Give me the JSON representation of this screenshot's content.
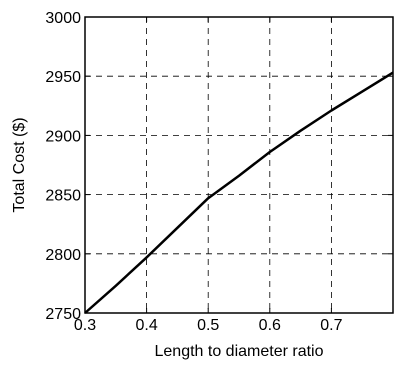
{
  "chart_data": {
    "type": "line",
    "title": "",
    "xlabel": "Length to diameter ratio",
    "ylabel": "Total Cost ($)",
    "xlim": [
      0.3,
      0.8
    ],
    "ylim": [
      2750,
      3000
    ],
    "xticks": [
      0.3,
      0.4,
      0.5,
      0.6,
      0.7
    ],
    "xtick_labels": [
      "0.3",
      "0.4",
      "0.5",
      "0.6",
      "0.7"
    ],
    "yticks": [
      2750,
      2800,
      2850,
      2900,
      2950,
      3000
    ],
    "ytick_labels": [
      "2750",
      "2800",
      "2850",
      "2900",
      "2950",
      "3000"
    ],
    "grid": true,
    "grid_style": "dashed",
    "legend": "none",
    "line_color": "#000000",
    "series": [
      {
        "x": [
          0.3,
          0.35,
          0.4,
          0.45,
          0.5,
          0.55,
          0.6,
          0.65,
          0.7,
          0.75,
          0.8
        ],
        "values": [
          2750,
          2773,
          2797,
          2822,
          2847,
          2866,
          2886,
          2904,
          2921,
          2937,
          2953
        ]
      }
    ]
  }
}
